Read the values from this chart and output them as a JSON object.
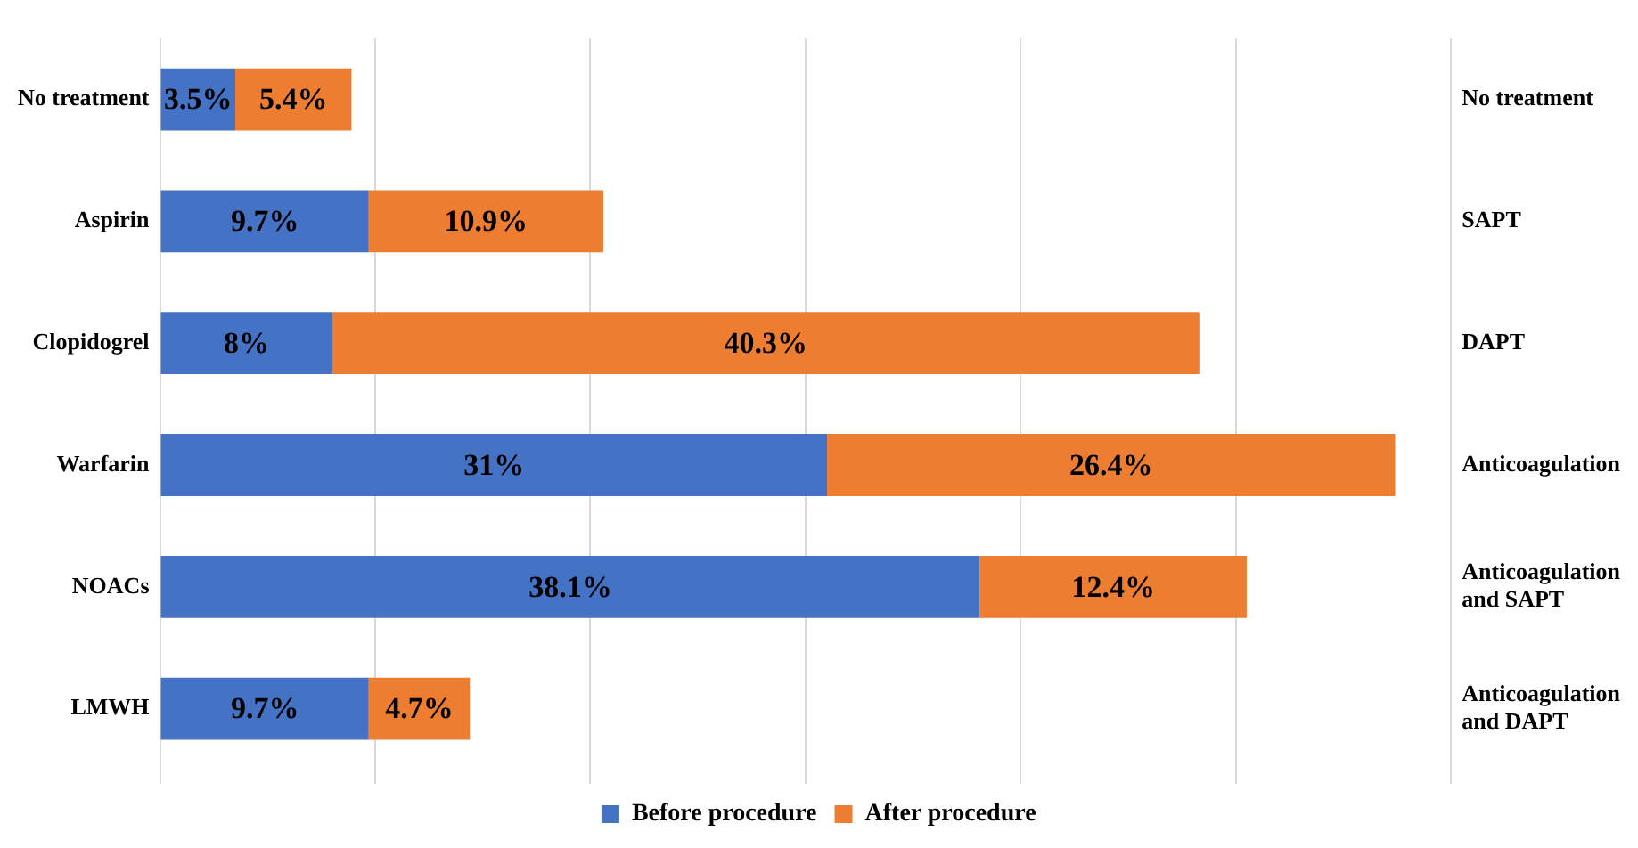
{
  "chart_data": {
    "type": "bar",
    "orientation": "horizontal",
    "stacked": true,
    "tick_labels": false,
    "categories": [
      "No treatment",
      "Aspirin",
      "Clopidogrel",
      "Warfarin",
      "NOACs",
      "LMWH"
    ],
    "y2_categories": [
      "No treatment",
      "SAPT",
      "DAPT",
      "Anticoagulation",
      "Anticoagulation and SAPT",
      "Anticoagulation and DAPT"
    ],
    "series": [
      {
        "name": "Before procedure",
        "color": "#4472c4",
        "values": [
          3.5,
          9.7,
          8,
          31,
          38.1,
          9.7
        ],
        "value_labels": [
          "3.5%",
          "9.7%",
          "8%",
          "31%",
          "38.1%",
          "9.7%"
        ]
      },
      {
        "name": "After procedure",
        "color": "#ed7d31",
        "values": [
          5.4,
          10.9,
          40.3,
          26.4,
          12.4,
          4.7
        ],
        "value_labels": [
          "5.4%",
          "10.9%",
          "40.3%",
          "26.4%",
          "12.4%",
          "4.7%"
        ]
      }
    ],
    "grid": "x",
    "legend": "bottom"
  }
}
